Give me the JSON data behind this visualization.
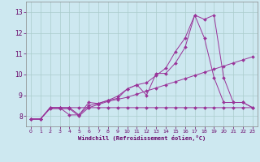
{
  "xlabel": "Windchill (Refroidissement éolien,°C)",
  "background_color": "#cde8f0",
  "grid_color": "#aacccc",
  "line_color": "#993399",
  "xlim": [
    -0.5,
    23.5
  ],
  "ylim": [
    7.5,
    13.5
  ],
  "xticks": [
    0,
    1,
    2,
    3,
    4,
    5,
    6,
    7,
    8,
    9,
    10,
    11,
    12,
    13,
    14,
    15,
    16,
    17,
    18,
    19,
    20,
    21,
    22,
    23
  ],
  "yticks": [
    8,
    9,
    10,
    11,
    12,
    13
  ],
  "series": {
    "line1_x": [
      0,
      1,
      2,
      3,
      4,
      5,
      6,
      7,
      8,
      9,
      10,
      11,
      12,
      13,
      14,
      15,
      16,
      17,
      18,
      19,
      20,
      21,
      22,
      23
    ],
    "line1_y": [
      7.85,
      7.85,
      8.4,
      8.4,
      8.4,
      8.05,
      8.65,
      8.6,
      8.75,
      8.95,
      9.3,
      9.5,
      9.0,
      10.05,
      10.05,
      10.55,
      11.3,
      12.85,
      12.65,
      12.85,
      9.85,
      8.65,
      8.65,
      8.4
    ],
    "line2_x": [
      0,
      1,
      2,
      3,
      4,
      5,
      6,
      7,
      8,
      9,
      10,
      11,
      12,
      13,
      14,
      15,
      16,
      17,
      18,
      19,
      20,
      21,
      22,
      23
    ],
    "line2_y": [
      7.85,
      7.85,
      8.4,
      8.4,
      8.05,
      8.05,
      8.5,
      8.6,
      8.75,
      8.85,
      9.3,
      9.5,
      9.6,
      9.95,
      10.3,
      11.1,
      11.75,
      12.85,
      11.75,
      9.85,
      8.65,
      8.65,
      8.65,
      8.4
    ],
    "line3_x": [
      0,
      1,
      2,
      3,
      4,
      5,
      6,
      7,
      8,
      9,
      10,
      11,
      12,
      13,
      14,
      15,
      16,
      17,
      18,
      19,
      20,
      21,
      22,
      23
    ],
    "line3_y": [
      7.85,
      7.85,
      8.4,
      8.4,
      8.4,
      8.4,
      8.4,
      8.4,
      8.4,
      8.4,
      8.4,
      8.4,
      8.4,
      8.4,
      8.4,
      8.4,
      8.4,
      8.4,
      8.4,
      8.4,
      8.4,
      8.4,
      8.4,
      8.4
    ],
    "line4_x": [
      0,
      1,
      2,
      3,
      4,
      5,
      6,
      7,
      8,
      9,
      10,
      11,
      12,
      13,
      14,
      15,
      16,
      17,
      18,
      19,
      20,
      21,
      22,
      23
    ],
    "line4_y": [
      7.85,
      7.85,
      8.35,
      8.35,
      8.35,
      8.0,
      8.4,
      8.55,
      8.7,
      8.8,
      8.9,
      9.05,
      9.2,
      9.35,
      9.5,
      9.65,
      9.8,
      9.95,
      10.1,
      10.25,
      10.4,
      10.55,
      10.7,
      10.85
    ]
  }
}
